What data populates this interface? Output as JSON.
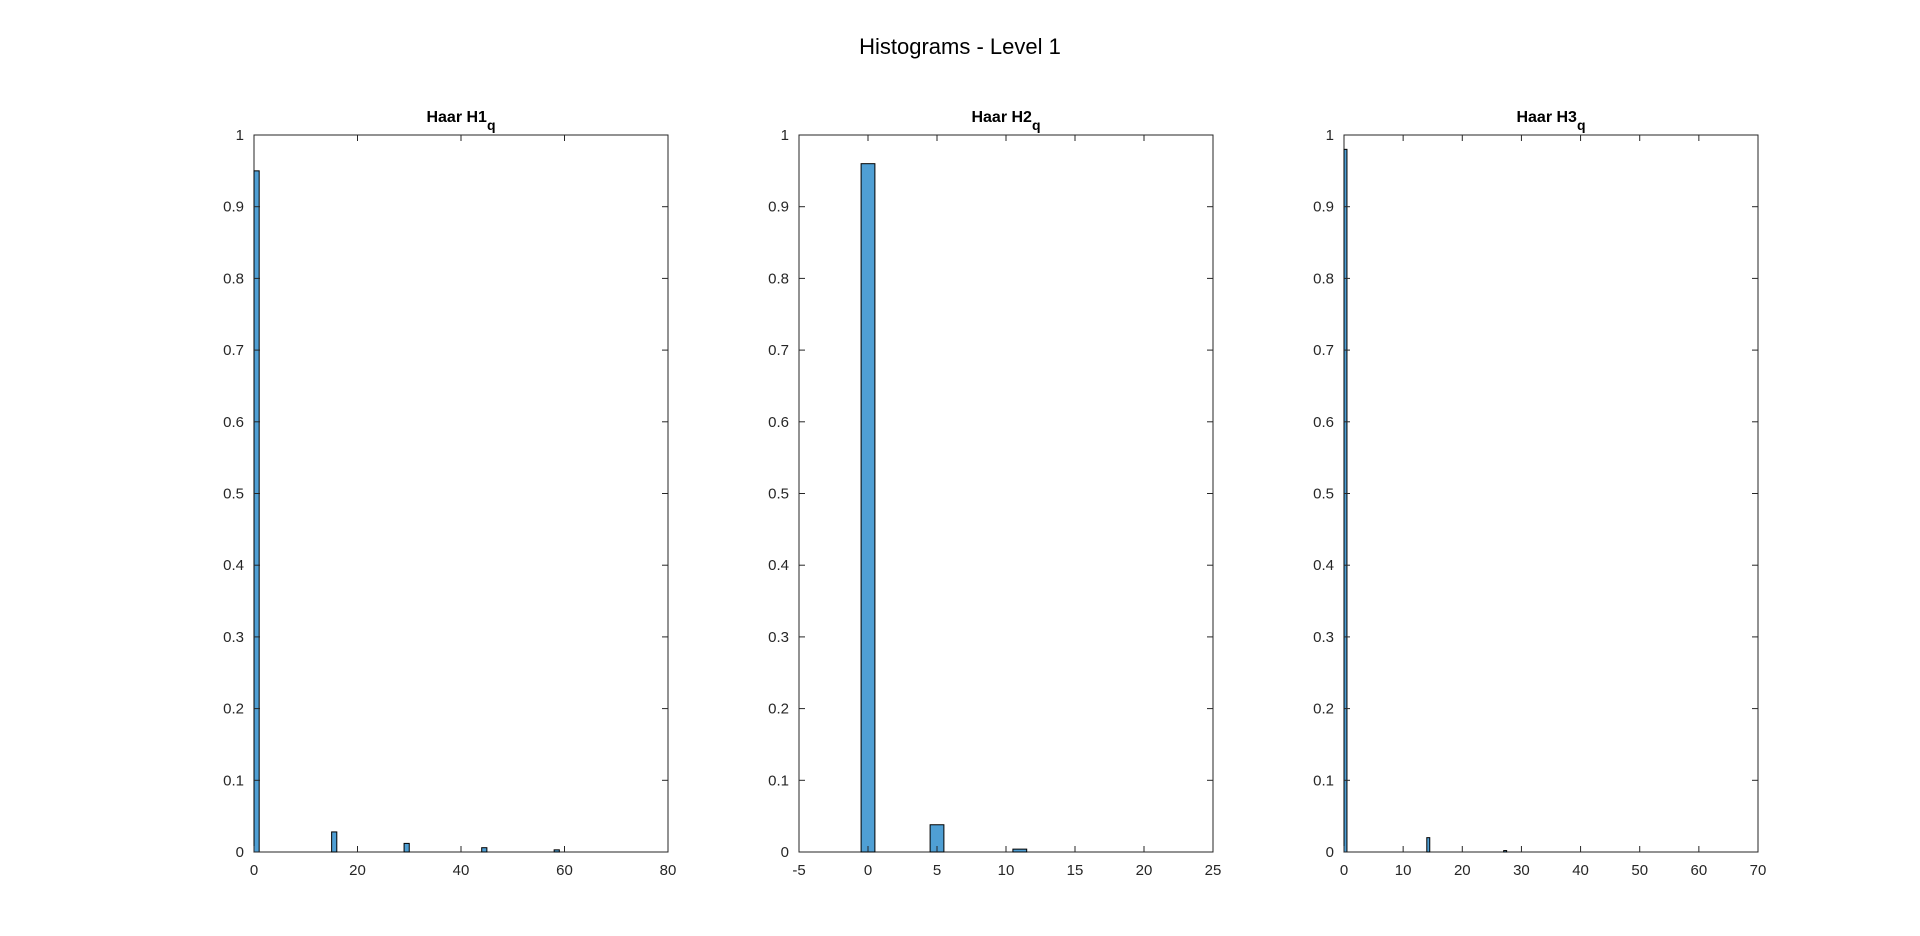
{
  "figure": {
    "title": "Histograms - Level 1"
  },
  "colors": {
    "bar_fill": "#4f9fd4",
    "bar_edge": "#000000",
    "axis": "#262626",
    "background": "#ffffff"
  },
  "chart_data": [
    {
      "type": "bar",
      "title": "Haar H1",
      "title_subscript": "q",
      "xlabel": "",
      "ylabel": "",
      "xlim": [
        0,
        80
      ],
      "ylim": [
        0,
        1
      ],
      "xticks": [
        0,
        20,
        40,
        60,
        80
      ],
      "yticks": [
        0,
        0.1,
        0.2,
        0.3,
        0.4,
        0.5,
        0.6,
        0.7,
        0.8,
        0.9,
        1
      ],
      "bar_width": 1,
      "x": [
        0.5,
        15.5,
        29.5,
        44.5,
        58.5
      ],
      "values": [
        0.95,
        0.028,
        0.012,
        0.006,
        0.003
      ],
      "grid": false
    },
    {
      "type": "bar",
      "title": "Haar H2",
      "title_subscript": "q",
      "xlabel": "",
      "ylabel": "",
      "xlim": [
        -5,
        25
      ],
      "ylim": [
        0,
        1
      ],
      "xticks": [
        -5,
        0,
        5,
        10,
        15,
        20,
        25
      ],
      "yticks": [
        0,
        0.1,
        0.2,
        0.3,
        0.4,
        0.5,
        0.6,
        0.7,
        0.8,
        0.9,
        1
      ],
      "bar_width": 1,
      "x": [
        0,
        5,
        11
      ],
      "values": [
        0.96,
        0.038,
        0.004
      ],
      "grid": false
    },
    {
      "type": "bar",
      "title": "Haar H3",
      "title_subscript": "q",
      "xlabel": "",
      "ylabel": "",
      "xlim": [
        0,
        70
      ],
      "ylim": [
        0,
        1
      ],
      "xticks": [
        0,
        10,
        20,
        30,
        40,
        50,
        60,
        70
      ],
      "yticks": [
        0,
        0.1,
        0.2,
        0.3,
        0.4,
        0.5,
        0.6,
        0.7,
        0.8,
        0.9,
        1
      ],
      "bar_width": 0.5,
      "x": [
        0.25,
        14.25,
        27.25
      ],
      "values": [
        0.98,
        0.02,
        0.002
      ],
      "grid": false
    }
  ]
}
